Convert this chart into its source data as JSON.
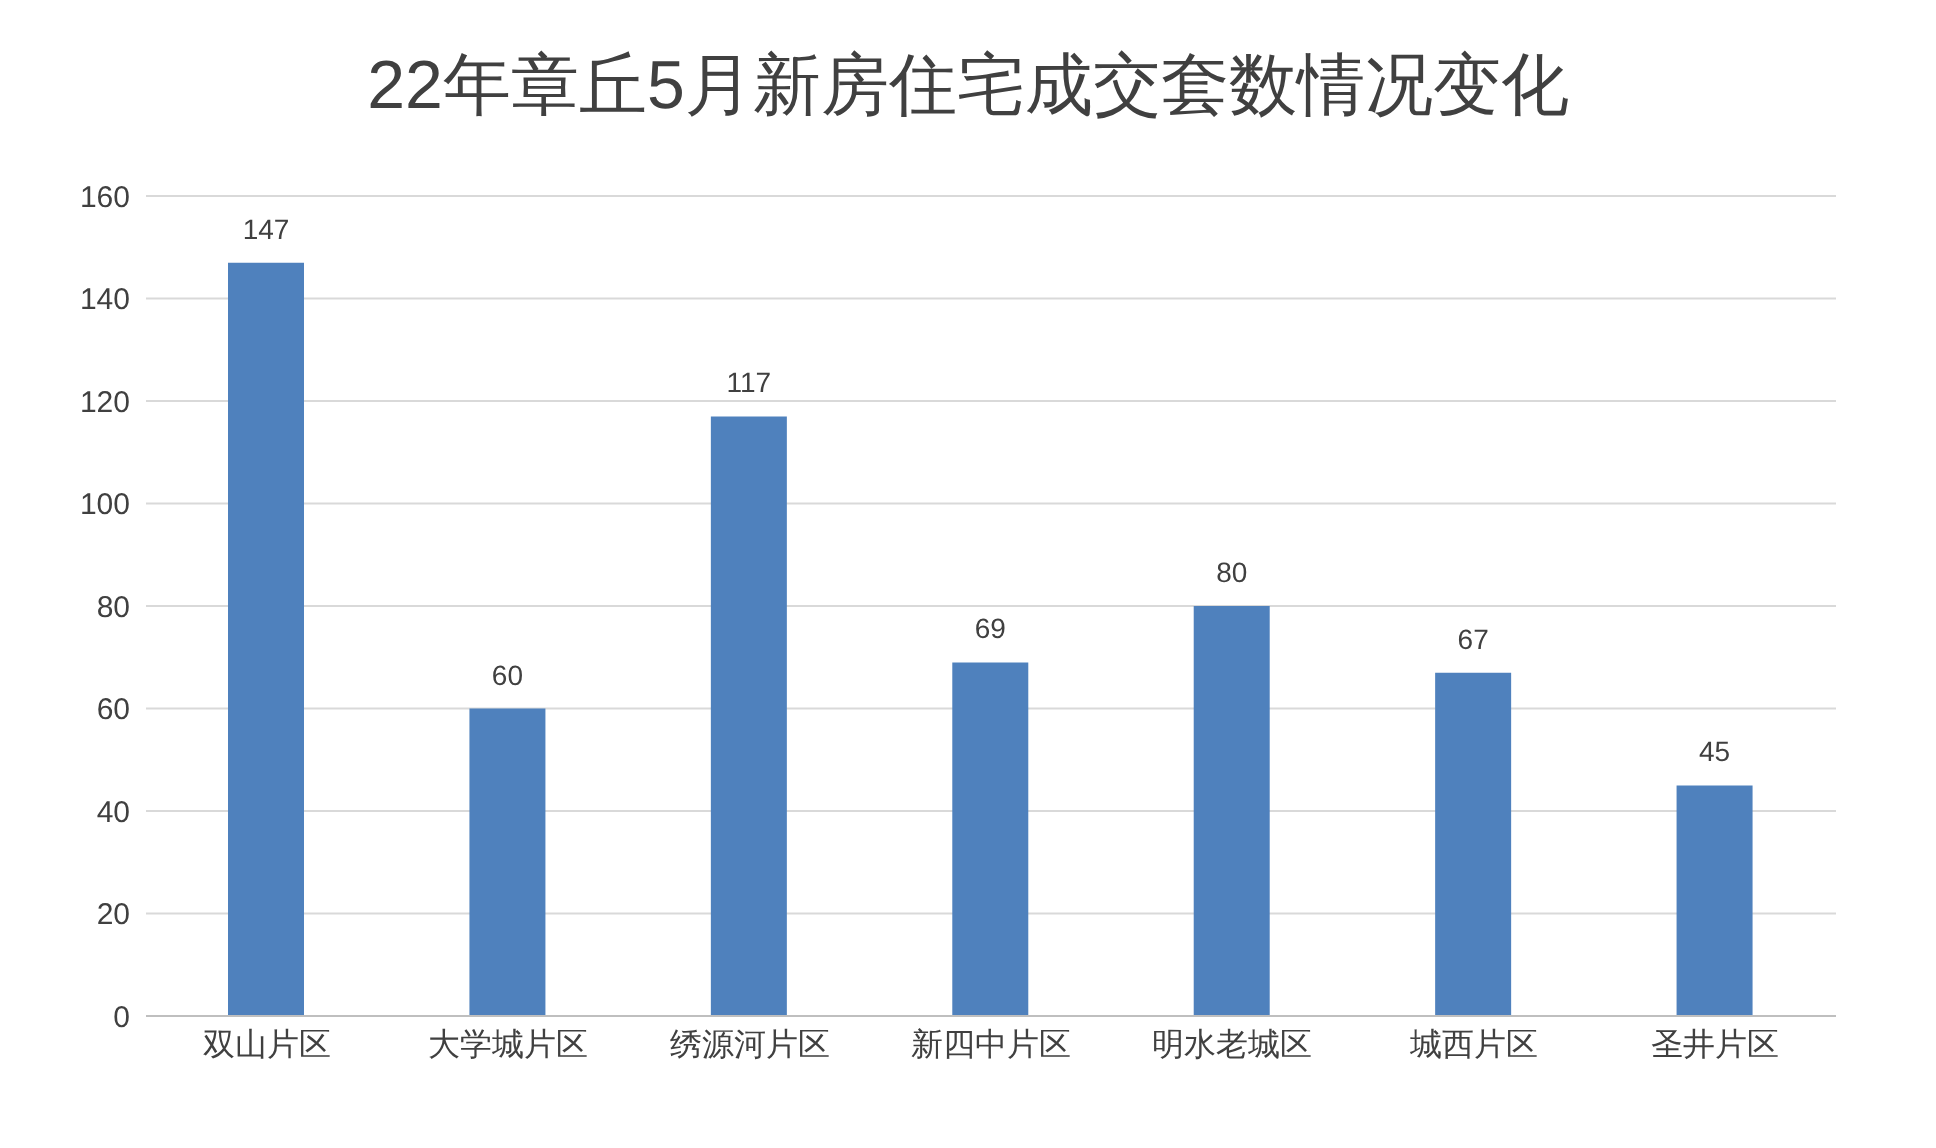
{
  "chart_data": {
    "type": "bar",
    "title": "22年章丘5月新房住宅成交套数情况变化",
    "categories": [
      "双山片区",
      "大学城片区",
      "绣源河片区",
      "新四中片区",
      "明水老城区",
      "城西片区",
      "圣井片区"
    ],
    "values": [
      147,
      60,
      117,
      69,
      80,
      67,
      45
    ],
    "color": "#4f81bd",
    "ylim": [
      0,
      160
    ],
    "yticks": [
      0,
      20,
      40,
      60,
      80,
      100,
      120,
      140,
      160
    ],
    "grid": "y",
    "data_labels": true
  }
}
